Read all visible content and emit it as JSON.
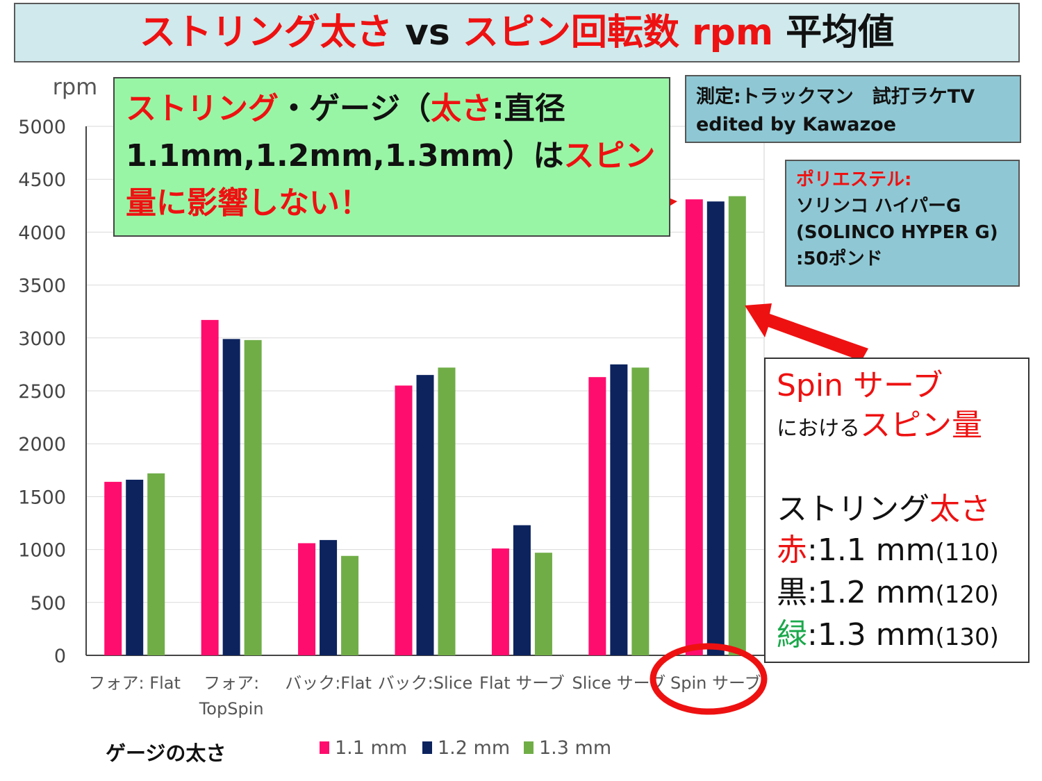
{
  "title": {
    "part1": "ストリング太さ",
    "part2": " vs ",
    "part3": "スピン回転数 rpm",
    "part4": " 平均値"
  },
  "colors": {
    "s1": "#ff0d6e",
    "s2": "#0c235e",
    "s3": "#70ad47",
    "accent": "#ee1111"
  },
  "callout": {
    "a": "ストリング",
    "b": "・ゲージ（",
    "c": "太さ",
    "d": ":直径",
    "e": "1.1mm,1.2mm,1.3mm）は",
    "f": "スピン",
    "g": "量に影響しない！"
  },
  "measure": {
    "line1": "測定:トラックマン　試打ラケTV",
    "line2": "edited by Kawazoe"
  },
  "poly": {
    "label": "ポリエステル:",
    "line2": "ソリンコ ハイパーG",
    "line3": "(SOLINCO HYPER G)",
    "line4": ":50ポンド"
  },
  "spinbox": {
    "title": "Spin サーブ",
    "sub_small": "における",
    "sub_red": "スピン量",
    "head_black": "ストリング",
    "head_red": "太さ",
    "r1_key": "赤",
    "r1_val": ":1.1 mm",
    "r1_paren": "(110)",
    "r2_key": "黒",
    "r2_val": ":1.2 mm",
    "r2_paren": "(120)",
    "r3_key": "緑",
    "r3_val": ":1.3 mm",
    "r3_paren": "(130)"
  },
  "chart_data": {
    "type": "bar",
    "title": "ストリング太さ vs スピン回転数 rpm 平均値",
    "ylabel": "rpm",
    "xlabel": "ゲージの太さ",
    "ylim": [
      0,
      5000
    ],
    "yticks": [
      0,
      500,
      1000,
      1500,
      2000,
      2500,
      3000,
      3500,
      4000,
      4500,
      5000
    ],
    "grid": true,
    "legend_position": "bottom",
    "categories": [
      [
        "フォア: Flat"
      ],
      [
        "フォア:",
        "TopSpin"
      ],
      [
        "バック:Flat"
      ],
      [
        "バック:Slice"
      ],
      [
        "Flat サーブ"
      ],
      [
        "Slice サーブ"
      ],
      [
        "Spin サーブ"
      ]
    ],
    "series": [
      {
        "name": "1.1 mm",
        "values": [
          1640,
          3170,
          1060,
          2550,
          1010,
          2630,
          4310
        ]
      },
      {
        "name": "1.2 mm",
        "values": [
          1660,
          2990,
          1090,
          2650,
          1230,
          2750,
          4290
        ]
      },
      {
        "name": "1.3 mm",
        "values": [
          1720,
          2980,
          940,
          2720,
          970,
          2720,
          4340
        ]
      }
    ]
  }
}
